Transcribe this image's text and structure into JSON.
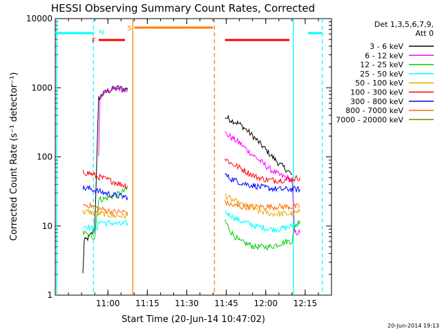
{
  "chart_data": {
    "type": "line",
    "title": "HESSI Observing Summary Count Rates, Corrected",
    "xlabel": "Start Time (20-Jun-14 10:47:02)",
    "ylabel": "Corrected Count Rate (s⁻¹ detector⁻¹)",
    "yscale": "log",
    "ylim": [
      1,
      10000
    ],
    "xlim_minutes": [
      -7,
      98
    ],
    "y_ticks": [
      {
        "value": 1,
        "label": "1"
      },
      {
        "value": 10,
        "label": "10"
      },
      {
        "value": 100,
        "label": "100"
      },
      {
        "value": 1000,
        "label": "1000"
      },
      {
        "value": 10000,
        "label": "10000"
      }
    ],
    "x_ticks": [
      {
        "value": 13,
        "label": "11:00"
      },
      {
        "value": 28,
        "label": "11:15"
      },
      {
        "value": 43,
        "label": "11:30"
      },
      {
        "value": 58,
        "label": "11:45"
      },
      {
        "value": 73,
        "label": "12:00"
      },
      {
        "value": 88,
        "label": "12:15"
      }
    ],
    "legend_title": [
      "Det 1,3,5,6,7,9,",
      "Att 0"
    ],
    "legend_position": "right",
    "series": [
      {
        "name": "3 - 6 keV",
        "color": "#000000",
        "segments": [
          [
            [
              3.5,
              2
            ],
            [
              4,
              6
            ],
            [
              6,
              7
            ],
            [
              8,
              9
            ],
            [
              9.5,
              700
            ],
            [
              11,
              800
            ],
            [
              13,
              900
            ],
            [
              15,
              950
            ],
            [
              17,
              1000
            ],
            [
              19,
              950
            ],
            [
              20.5,
              950
            ]
          ],
          [
            [
              57.5,
              380
            ],
            [
              60,
              340
            ],
            [
              63,
              300
            ],
            [
              66,
              240
            ],
            [
              69,
              185
            ],
            [
              72,
              140
            ],
            [
              75,
              105
            ],
            [
              78,
              80
            ],
            [
              81,
              65
            ],
            [
              83,
              55
            ]
          ]
        ]
      },
      {
        "name": "6 - 12 keV",
        "color": "#ff00ff",
        "segments": [
          [
            [
              9.5,
              100
            ],
            [
              10,
              700
            ],
            [
              11,
              850
            ],
            [
              13,
              920
            ],
            [
              15,
              950
            ],
            [
              17,
              980
            ],
            [
              19,
              950
            ],
            [
              20.5,
              950
            ]
          ],
          [
            [
              57.5,
              220
            ],
            [
              60,
              190
            ],
            [
              63,
              160
            ],
            [
              66,
              125
            ],
            [
              69,
              100
            ],
            [
              72,
              80
            ],
            [
              75,
              65
            ],
            [
              78,
              55
            ],
            [
              81,
              50
            ],
            [
              83,
              45
            ],
            [
              84,
              8
            ],
            [
              86,
              8
            ]
          ]
        ]
      },
      {
        "name": "12 - 25 keV",
        "color": "#00cc00",
        "segments": [
          [
            [
              3.5,
              8
            ],
            [
              4,
              8
            ],
            [
              6,
              7
            ],
            [
              8,
              7
            ],
            [
              9.5,
              24
            ],
            [
              12,
              25
            ],
            [
              15,
              27
            ],
            [
              18,
              30
            ],
            [
              20.5,
              35
            ]
          ],
          [
            [
              57.5,
              12
            ],
            [
              60,
              8
            ],
            [
              63,
              6
            ],
            [
              66,
              5.5
            ],
            [
              69,
              5
            ],
            [
              72,
              5
            ],
            [
              75,
              5
            ],
            [
              78,
              5.5
            ],
            [
              81,
              6
            ],
            [
              83,
              6
            ],
            [
              84,
              10
            ],
            [
              86,
              12
            ]
          ]
        ]
      },
      {
        "name": "25 - 50 keV",
        "color": "#00ffff",
        "segments": [
          [
            [
              3.5,
              10
            ],
            [
              5,
              10
            ],
            [
              7,
              9
            ],
            [
              9,
              9
            ],
            [
              9.5,
              12
            ],
            [
              12,
              11
            ],
            [
              15,
              11
            ],
            [
              18,
              10.5
            ],
            [
              20.5,
              11
            ]
          ],
          [
            [
              57.5,
              16
            ],
            [
              60,
              14
            ],
            [
              63,
              12
            ],
            [
              66,
              11
            ],
            [
              69,
              10
            ],
            [
              72,
              9.5
            ],
            [
              75,
              9
            ],
            [
              78,
              9
            ],
            [
              81,
              9.5
            ],
            [
              83,
              10
            ],
            [
              86,
              11
            ]
          ]
        ]
      },
      {
        "name": "50 - 100 keV",
        "color": "#e6a800",
        "segments": [
          [
            [
              3.5,
              16
            ],
            [
              6,
              16
            ],
            [
              9,
              15
            ],
            [
              12,
              15
            ],
            [
              15,
              14
            ],
            [
              18,
              14
            ],
            [
              20.5,
              14
            ]
          ],
          [
            [
              57.5,
              28
            ],
            [
              60,
              24
            ],
            [
              63,
              21
            ],
            [
              66,
              19
            ],
            [
              69,
              17
            ],
            [
              72,
              16
            ],
            [
              75,
              15
            ],
            [
              78,
              15
            ],
            [
              81,
              15
            ],
            [
              83,
              15
            ],
            [
              86,
              16
            ]
          ]
        ]
      },
      {
        "name": "100 - 300 keV",
        "color": "#ff0000",
        "segments": [
          [
            [
              3.5,
              60
            ],
            [
              6,
              58
            ],
            [
              9,
              52
            ],
            [
              12,
              48
            ],
            [
              15,
              44
            ],
            [
              18,
              40
            ],
            [
              20.5,
              38
            ]
          ],
          [
            [
              57.5,
              95
            ],
            [
              60,
              80
            ],
            [
              63,
              70
            ],
            [
              66,
              60
            ],
            [
              69,
              52
            ],
            [
              72,
              48
            ],
            [
              75,
              46
            ],
            [
              78,
              46
            ],
            [
              81,
              47
            ],
            [
              83,
              48
            ],
            [
              86,
              50
            ]
          ]
        ]
      },
      {
        "name": "300 - 800 keV",
        "color": "#0000ff",
        "segments": [
          [
            [
              3.5,
              35
            ],
            [
              6,
              35
            ],
            [
              9,
              32
            ],
            [
              12,
              30
            ],
            [
              15,
              28
            ],
            [
              18,
              27
            ],
            [
              20.5,
              26
            ]
          ],
          [
            [
              57.5,
              55
            ],
            [
              60,
              48
            ],
            [
              63,
              43
            ],
            [
              66,
              40
            ],
            [
              69,
              38
            ],
            [
              72,
              36
            ],
            [
              75,
              35
            ],
            [
              78,
              34
            ],
            [
              81,
              34
            ],
            [
              83,
              34
            ],
            [
              86,
              34
            ]
          ]
        ]
      },
      {
        "name": "800 - 7000 keV",
        "color": "#ff6a00",
        "segments": [
          [
            [
              3.5,
              20
            ],
            [
              6,
              20
            ],
            [
              9,
              18
            ],
            [
              12,
              17
            ],
            [
              15,
              16
            ],
            [
              18,
              16
            ],
            [
              20.5,
              16
            ]
          ],
          [
            [
              57.5,
              22
            ],
            [
              60,
              20
            ],
            [
              63,
              19
            ],
            [
              66,
              19
            ],
            [
              69,
              19
            ],
            [
              72,
              19
            ],
            [
              75,
              19
            ],
            [
              78,
              19
            ],
            [
              81,
              19
            ],
            [
              83,
              19
            ],
            [
              86,
              19
            ]
          ]
        ]
      },
      {
        "name": "7000 - 20000 keV",
        "color": "#7f7f00",
        "segments": []
      }
    ],
    "state_bars": [
      {
        "label": "",
        "color": "#00ffff",
        "x0": -7,
        "x1": 7.5,
        "level": "high"
      },
      {
        "label": "N",
        "color": "#00ffff",
        "x0": 7.5,
        "x1": 7.5,
        "level": "high"
      },
      {
        "label": "F",
        "color": "#ff0000",
        "x0": 9.5,
        "x1": 19.5,
        "level": "mid"
      },
      {
        "label": "S",
        "color": "#ff7f00",
        "x0": 23,
        "x1": 53,
        "level": "top"
      },
      {
        "label": "",
        "color": "#ff0000",
        "x0": 57.5,
        "x1": 82,
        "level": "mid"
      },
      {
        "label": "",
        "color": "#00ffff",
        "x0": 89,
        "x1": 94.5,
        "level": "high"
      }
    ],
    "vlines": [
      {
        "x": -6.5,
        "color": "#00ffff",
        "style": "solid"
      },
      {
        "x": 7.5,
        "color": "#00ffff",
        "style": "dashed"
      },
      {
        "x": 22.5,
        "color": "#ff7f00",
        "style": "solid"
      },
      {
        "x": 53.5,
        "color": "#ff7f00",
        "style": "dashed"
      },
      {
        "x": 83.5,
        "color": "#00ffff",
        "style": "solid"
      },
      {
        "x": 94.5,
        "color": "#00ffff",
        "style": "dashed"
      }
    ]
  },
  "footer": {
    "datestamp": "20-Jun-2014 19:13"
  }
}
